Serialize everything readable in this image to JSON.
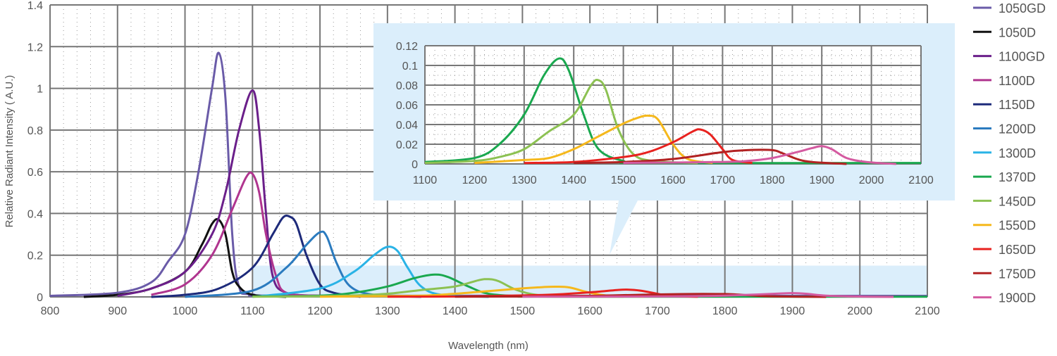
{
  "chart_data": {
    "type": "line",
    "xlabel": "Wavelength (nm)",
    "ylabel": "Relative Radiant Intensity ( A.U.)",
    "xlim": [
      800,
      2100
    ],
    "ylim": [
      0,
      1.4
    ],
    "xticks": [
      800,
      900,
      1000,
      1100,
      1200,
      1300,
      1400,
      1500,
      1600,
      1700,
      1800,
      1900,
      2000,
      2100
    ],
    "yticks": [
      "0",
      "0.2",
      "0.4",
      "0.6",
      "0.8",
      "1",
      "1.2",
      "1.4"
    ],
    "grid": true,
    "legend_position": "right",
    "zoom_region": {
      "x": [
        1100,
        2100
      ],
      "y": [
        0,
        0.15
      ]
    },
    "inset": {
      "xlim": [
        1100,
        2100
      ],
      "ylim": [
        0,
        0.12
      ],
      "xticks": [
        1100,
        1200,
        1300,
        1400,
        1500,
        1600,
        1700,
        1800,
        1900,
        2000,
        2100
      ],
      "yticks": [
        "0",
        "0.02",
        "0.04",
        "0.06",
        "0.08",
        "0.1",
        "0.12"
      ],
      "series_shown": [
        "1370D",
        "1450D",
        "1550D",
        "1650D",
        "1750D",
        "1900D"
      ]
    },
    "series": [
      {
        "name": "1050GD",
        "color": "#6a5ba8",
        "points": [
          [
            800,
            0.005
          ],
          [
            900,
            0.02
          ],
          [
            950,
            0.07
          ],
          [
            975,
            0.17
          ],
          [
            1000,
            0.3
          ],
          [
            1020,
            0.6
          ],
          [
            1040,
            1.0
          ],
          [
            1050,
            1.17
          ],
          [
            1060,
            0.95
          ],
          [
            1070,
            0.3
          ],
          [
            1080,
            0.05
          ],
          [
            1100,
            0.012
          ],
          [
            1200,
            0.006
          ],
          [
            2100,
            0.005
          ]
        ]
      },
      {
        "name": "1050D",
        "color": "#111111",
        "points": [
          [
            850,
            0
          ],
          [
            900,
            0.01
          ],
          [
            950,
            0.04
          ],
          [
            1000,
            0.12
          ],
          [
            1025,
            0.25
          ],
          [
            1040,
            0.35
          ],
          [
            1050,
            0.37
          ],
          [
            1060,
            0.3
          ],
          [
            1070,
            0.12
          ],
          [
            1080,
            0.05
          ],
          [
            1100,
            0.01
          ],
          [
            1150,
            0
          ]
        ]
      },
      {
        "name": "1100GD",
        "color": "#6b1f8a",
        "points": [
          [
            900,
            0.005
          ],
          [
            950,
            0.04
          ],
          [
            1000,
            0.12
          ],
          [
            1040,
            0.3
          ],
          [
            1060,
            0.5
          ],
          [
            1080,
            0.8
          ],
          [
            1100,
            0.99
          ],
          [
            1110,
            0.8
          ],
          [
            1120,
            0.4
          ],
          [
            1130,
            0.1
          ],
          [
            1150,
            0.02
          ],
          [
            1200,
            0.005
          ]
        ]
      },
      {
        "name": "1100D",
        "color": "#b0358f",
        "points": [
          [
            950,
            0.01
          ],
          [
            1000,
            0.06
          ],
          [
            1040,
            0.2
          ],
          [
            1070,
            0.42
          ],
          [
            1090,
            0.57
          ],
          [
            1100,
            0.59
          ],
          [
            1110,
            0.5
          ],
          [
            1120,
            0.3
          ],
          [
            1135,
            0.1
          ],
          [
            1150,
            0.02
          ],
          [
            1200,
            0.005
          ]
        ]
      },
      {
        "name": "1150D",
        "color": "#1d2a7a",
        "points": [
          [
            950,
            0
          ],
          [
            1000,
            0.01
          ],
          [
            1050,
            0.04
          ],
          [
            1100,
            0.14
          ],
          [
            1130,
            0.3
          ],
          [
            1145,
            0.38
          ],
          [
            1155,
            0.385
          ],
          [
            1165,
            0.35
          ],
          [
            1180,
            0.2
          ],
          [
            1200,
            0.06
          ],
          [
            1220,
            0.02
          ],
          [
            1260,
            0
          ]
        ]
      },
      {
        "name": "1200D",
        "color": "#2b7bbf",
        "points": [
          [
            1000,
            0
          ],
          [
            1100,
            0.03
          ],
          [
            1150,
            0.14
          ],
          [
            1180,
            0.25
          ],
          [
            1200,
            0.31
          ],
          [
            1210,
            0.29
          ],
          [
            1225,
            0.16
          ],
          [
            1245,
            0.05
          ],
          [
            1280,
            0.01
          ],
          [
            1350,
            0
          ]
        ]
      },
      {
        "name": "1300D",
        "color": "#2ab3e6",
        "points": [
          [
            1100,
            0
          ],
          [
            1200,
            0.04
          ],
          [
            1250,
            0.12
          ],
          [
            1280,
            0.2
          ],
          [
            1300,
            0.24
          ],
          [
            1315,
            0.22
          ],
          [
            1330,
            0.14
          ],
          [
            1350,
            0.05
          ],
          [
            1380,
            0.01
          ],
          [
            1450,
            0
          ]
        ]
      },
      {
        "name": "1370D",
        "color": "#1aa84f",
        "points": [
          [
            1100,
            0.002
          ],
          [
            1200,
            0.006
          ],
          [
            1250,
            0.02
          ],
          [
            1300,
            0.05
          ],
          [
            1340,
            0.09
          ],
          [
            1370,
            0.107
          ],
          [
            1390,
            0.095
          ],
          [
            1420,
            0.05
          ],
          [
            1450,
            0.015
          ],
          [
            1500,
            0.003
          ],
          [
            1550,
            0.001
          ],
          [
            2100,
            0.001
          ]
        ]
      },
      {
        "name": "1450D",
        "color": "#8cc152",
        "points": [
          [
            1100,
            0.001
          ],
          [
            1200,
            0.003
          ],
          [
            1250,
            0.007
          ],
          [
            1300,
            0.015
          ],
          [
            1350,
            0.033
          ],
          [
            1400,
            0.05
          ],
          [
            1435,
            0.08
          ],
          [
            1450,
            0.085
          ],
          [
            1465,
            0.075
          ],
          [
            1490,
            0.035
          ],
          [
            1520,
            0.01
          ],
          [
            1560,
            0.003
          ],
          [
            1650,
            0.001
          ]
        ]
      },
      {
        "name": "1550D",
        "color": "#f5b81c",
        "points": [
          [
            1200,
            0.001
          ],
          [
            1300,
            0.004
          ],
          [
            1350,
            0.006
          ],
          [
            1400,
            0.015
          ],
          [
            1450,
            0.028
          ],
          [
            1500,
            0.041
          ],
          [
            1530,
            0.047
          ],
          [
            1550,
            0.049
          ],
          [
            1570,
            0.045
          ],
          [
            1600,
            0.02
          ],
          [
            1630,
            0.005
          ],
          [
            1680,
            0.001
          ]
        ]
      },
      {
        "name": "1650D",
        "color": "#e8221f",
        "points": [
          [
            1300,
            0.001
          ],
          [
            1400,
            0.002
          ],
          [
            1500,
            0.007
          ],
          [
            1550,
            0.012
          ],
          [
            1600,
            0.022
          ],
          [
            1640,
            0.033
          ],
          [
            1655,
            0.035
          ],
          [
            1675,
            0.03
          ],
          [
            1700,
            0.015
          ],
          [
            1720,
            0.004
          ],
          [
            1760,
            0.001
          ]
        ]
      },
      {
        "name": "1750D",
        "color": "#b22222",
        "points": [
          [
            1400,
            0.001
          ],
          [
            1500,
            0.002
          ],
          [
            1600,
            0.005
          ],
          [
            1700,
            0.012
          ],
          [
            1750,
            0.014
          ],
          [
            1800,
            0.014
          ],
          [
            1820,
            0.011
          ],
          [
            1850,
            0.005
          ],
          [
            1880,
            0.002
          ],
          [
            1950,
            0
          ]
        ]
      },
      {
        "name": "1900D",
        "color": "#d45aa0",
        "points": [
          [
            1500,
            0.001
          ],
          [
            1700,
            0.002
          ],
          [
            1750,
            0.003
          ],
          [
            1800,
            0.006
          ],
          [
            1850,
            0.012
          ],
          [
            1880,
            0.016
          ],
          [
            1900,
            0.018
          ],
          [
            1920,
            0.015
          ],
          [
            1950,
            0.006
          ],
          [
            1990,
            0.002
          ],
          [
            2050,
            0
          ]
        ]
      }
    ]
  }
}
